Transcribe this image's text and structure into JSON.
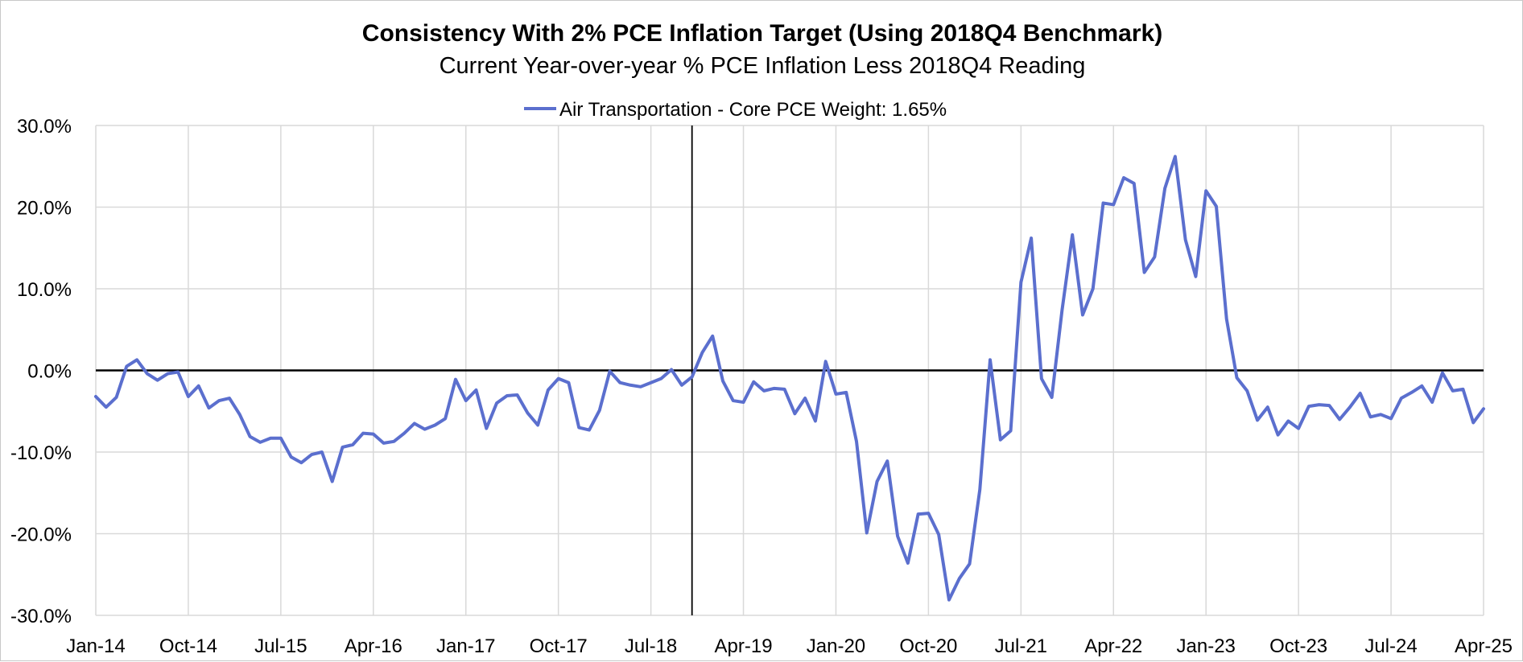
{
  "chart_data": {
    "type": "line",
    "title": "Consistency With 2% PCE Inflation Target (Using 2018Q4 Benchmark)",
    "subtitle": "Current Year-over-year % PCE Inflation Less 2018Q4 Reading",
    "xlabel": "",
    "ylabel": "",
    "x_start": "Jan-14",
    "x_end": "Apr-25",
    "x_tick_labels": [
      "Jan-14",
      "Oct-14",
      "Jul-15",
      "Apr-16",
      "Jan-17",
      "Oct-17",
      "Jul-18",
      "Apr-19",
      "Jan-20",
      "Oct-20",
      "Jul-21",
      "Apr-22",
      "Jan-23",
      "Oct-23",
      "Jul-24",
      "Apr-25"
    ],
    "y_tick_labels": [
      "30.0%",
      "20.0%",
      "10.0%",
      "0.0%",
      "-10.0%",
      "-20.0%",
      "-30.0%"
    ],
    "ylim": [
      -30,
      30
    ],
    "y_ticks": [
      30,
      20,
      10,
      0,
      -10,
      -20,
      -30
    ],
    "grid": true,
    "legend_position": "top-center",
    "benchmark_marker_x": "Nov-18",
    "series": [
      {
        "name": "Air Transportation - Core PCE Weight: 1.65%",
        "color": "#5b6fce",
        "x": [
          "Jan-14",
          "Feb-14",
          "Mar-14",
          "Apr-14",
          "May-14",
          "Jun-14",
          "Jul-14",
          "Aug-14",
          "Sep-14",
          "Oct-14",
          "Nov-14",
          "Dec-14",
          "Jan-15",
          "Feb-15",
          "Mar-15",
          "Apr-15",
          "May-15",
          "Jun-15",
          "Jul-15",
          "Aug-15",
          "Sep-15",
          "Oct-15",
          "Nov-15",
          "Dec-15",
          "Jan-16",
          "Feb-16",
          "Mar-16",
          "Apr-16",
          "May-16",
          "Jun-16",
          "Jul-16",
          "Aug-16",
          "Sep-16",
          "Oct-16",
          "Nov-16",
          "Dec-16",
          "Jan-17",
          "Feb-17",
          "Mar-17",
          "Apr-17",
          "May-17",
          "Jun-17",
          "Jul-17",
          "Aug-17",
          "Sep-17",
          "Oct-17",
          "Nov-17",
          "Dec-17",
          "Jan-18",
          "Feb-18",
          "Mar-18",
          "Apr-18",
          "May-18",
          "Jun-18",
          "Jul-18",
          "Aug-18",
          "Sep-18",
          "Oct-18",
          "Nov-18",
          "Dec-18",
          "Jan-19",
          "Feb-19",
          "Mar-19",
          "Apr-19",
          "May-19",
          "Jun-19",
          "Jul-19",
          "Aug-19",
          "Sep-19",
          "Oct-19",
          "Nov-19",
          "Dec-19",
          "Jan-20",
          "Feb-20",
          "Mar-20",
          "Apr-20",
          "May-20",
          "Jun-20",
          "Jul-20",
          "Aug-20",
          "Sep-20",
          "Oct-20",
          "Nov-20",
          "Dec-20",
          "Jan-21",
          "Feb-21",
          "Mar-21",
          "Apr-21",
          "May-21",
          "Jun-21",
          "Jul-21",
          "Aug-21",
          "Sep-21",
          "Oct-21",
          "Nov-21",
          "Dec-21",
          "Jan-22",
          "Feb-22",
          "Mar-22",
          "Apr-22",
          "May-22",
          "Jun-22",
          "Jul-22",
          "Aug-22",
          "Sep-22",
          "Oct-22",
          "Nov-22",
          "Dec-22",
          "Jan-23",
          "Feb-23",
          "Mar-23",
          "Apr-23",
          "May-23",
          "Jun-23",
          "Jul-23",
          "Aug-23",
          "Sep-23",
          "Oct-23",
          "Nov-23",
          "Dec-23",
          "Jan-24",
          "Feb-24",
          "Mar-24",
          "Apr-24",
          "May-24",
          "Jun-24",
          "Jul-24",
          "Aug-24",
          "Sep-24",
          "Oct-24",
          "Nov-24",
          "Dec-24",
          "Jan-25",
          "Feb-25",
          "Mar-25",
          "Apr-25"
        ],
        "values": [
          -3.2,
          -4.5,
          -3.3,
          0.5,
          1.3,
          -0.4,
          -1.2,
          -0.4,
          -0.2,
          -3.2,
          -1.9,
          -4.6,
          -3.7,
          -3.4,
          -5.4,
          -8.1,
          -8.8,
          -8.3,
          -8.3,
          -10.6,
          -11.3,
          -10.3,
          -10.0,
          -13.6,
          -9.4,
          -9.1,
          -7.7,
          -7.8,
          -8.9,
          -8.7,
          -7.7,
          -6.5,
          -7.2,
          -6.7,
          -5.9,
          -1.1,
          -3.7,
          -2.4,
          -7.1,
          -4.0,
          -3.1,
          -3.0,
          -5.2,
          -6.7,
          -2.4,
          -1.0,
          -1.5,
          -7.0,
          -7.3,
          -4.9,
          -0.1,
          -1.5,
          -1.8,
          -2.0,
          -1.5,
          -1.0,
          0.1,
          -1.8,
          -0.8,
          2.2,
          4.2,
          -1.3,
          -3.7,
          -3.9,
          -1.4,
          -2.5,
          -2.2,
          -2.3,
          -5.3,
          -3.4,
          -6.2,
          1.1,
          -2.9,
          -2.7,
          -8.7,
          -19.9,
          -13.6,
          -11.1,
          -20.3,
          -23.6,
          -17.6,
          -17.5,
          -20.1,
          -28.1,
          -25.5,
          -23.7,
          -14.6,
          1.3,
          -8.5,
          -7.4,
          10.8,
          16.2,
          -1.0,
          -3.3,
          7.4,
          16.6,
          6.8,
          10.0,
          20.5,
          20.3,
          23.6,
          22.9,
          12.0,
          13.9,
          22.3,
          26.2,
          16.0,
          11.5,
          22.0,
          20.1,
          6.3,
          -0.9,
          -2.5,
          -6.1,
          -4.5,
          -7.9,
          -6.2,
          -7.1,
          -4.4,
          -4.2,
          -4.3,
          -6.0,
          -4.5,
          -2.8,
          -5.7,
          -5.4,
          -5.9,
          -3.4,
          -2.7,
          -1.9,
          -3.9,
          -0.3,
          -2.5,
          -2.3,
          -6.4,
          -4.7
        ]
      }
    ]
  }
}
